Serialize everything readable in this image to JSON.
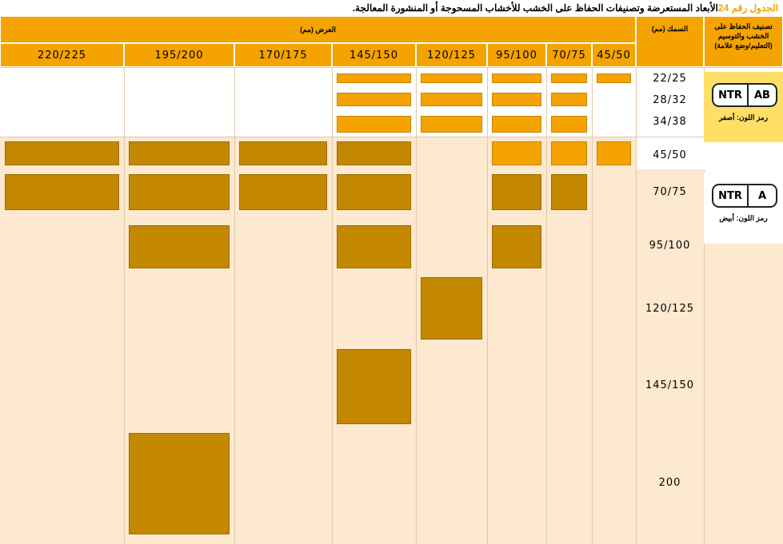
{
  "title": {
    "prefix": "الجدول رقم",
    "number": "24",
    "text": "الأبعاد المستعرضة وتصنيفات الحفاظ على الخشب للأخشاب المسحوجة أو المنشورة المعالجة."
  },
  "headers": {
    "width": "العرض (مم)",
    "thickness": "السمك (مم)",
    "classification": "تصنيف الحفاظ على الخشب والتوسيم (التعليم/وضع علامة)"
  },
  "widths": [
    "220/225",
    "195/200",
    "170/175",
    "145/150",
    "120/125",
    "95/100",
    "70/75",
    "45/50"
  ],
  "thicknesses": [
    "22/25",
    "28/32",
    "34/38",
    "45/50",
    "70/75",
    "95/100",
    "120/125",
    "145/150",
    "200"
  ],
  "classes": [
    {
      "code_left": "NTR",
      "code_right": "AB",
      "color_label": "رمز اللون: أصفر",
      "color": "#ffe066"
    },
    {
      "code_left": "NTR",
      "code_right": "A",
      "color_label": "رمز اللون: أبيض",
      "color": "#ffffff"
    }
  ],
  "availability": [
    {
      "thickness": "22/25",
      "class": "AB",
      "widths": [
        "145/150",
        "120/125",
        "95/100",
        "70/75",
        "45/50"
      ]
    },
    {
      "thickness": "28/32",
      "class": "AB",
      "widths": [
        "145/150",
        "120/125",
        "95/100",
        "70/75"
      ]
    },
    {
      "thickness": "34/38",
      "class": "AB",
      "widths": [
        "145/150",
        "120/125",
        "95/100",
        "70/75"
      ]
    },
    {
      "thickness": "45/50",
      "class": "AB",
      "widths": [
        "95/100",
        "70/75",
        "45/50"
      ]
    },
    {
      "thickness": "45/50",
      "class": "A",
      "widths": [
        "220/225",
        "195/200",
        "170/175",
        "145/150"
      ]
    },
    {
      "thickness": "70/75",
      "class": "A",
      "widths": [
        "220/225",
        "195/200",
        "170/175",
        "145/150",
        "95/100",
        "70/75"
      ]
    },
    {
      "thickness": "95/100",
      "class": "A",
      "widths": [
        "195/200",
        "145/150",
        "95/100"
      ]
    },
    {
      "thickness": "120/125",
      "class": "A",
      "widths": [
        "120/125"
      ]
    },
    {
      "thickness": "145/150",
      "class": "A",
      "widths": [
        "145/150"
      ]
    },
    {
      "thickness": "200",
      "class": "A",
      "widths": [
        "195/200"
      ]
    }
  ],
  "colors": {
    "orange": "#f4a300",
    "dark_orange": "#c48800",
    "peach": "#fde9cf",
    "yellow": "#ffe066"
  }
}
